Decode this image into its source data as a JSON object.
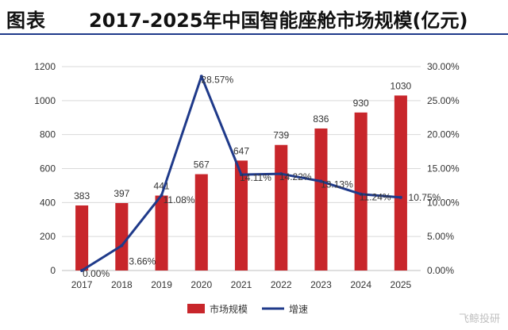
{
  "header": {
    "label": "图表",
    "title": "2017-2025年中国智能座舱市场规模(亿元)"
  },
  "watermark": "飞鲸投研",
  "colors": {
    "bar": "#c8262b",
    "line": "#1f3a8a",
    "grid": "#d9d9d9",
    "axis_text": "#333333",
    "header_rule": "#1f3a8a"
  },
  "chart_data": {
    "type": "bar",
    "categories": [
      "2017",
      "2018",
      "2019",
      "2020",
      "2021",
      "2022",
      "2023",
      "2024",
      "2025"
    ],
    "series": [
      {
        "name": "市场规模",
        "type": "bar",
        "axis": "left",
        "values": [
          383,
          397,
          441,
          567,
          647,
          739,
          836,
          930,
          1030
        ],
        "labels": [
          "383",
          "397",
          "441",
          "567",
          "647",
          "739",
          "836",
          "930",
          "1030"
        ]
      },
      {
        "name": "增速",
        "type": "line",
        "axis": "right",
        "values": [
          0.0,
          3.66,
          11.08,
          28.57,
          14.11,
          14.22,
          13.13,
          11.24,
          10.75
        ],
        "labels": [
          "0.00%",
          "3.66%",
          "11.08%",
          "28.57%",
          "14.11%",
          "14.22%",
          "13.13%",
          "11.24%",
          "10.75%"
        ]
      }
    ],
    "y_left": {
      "min": 0,
      "max": 1200,
      "ticks": [
        0,
        200,
        400,
        600,
        800,
        1000,
        1200
      ]
    },
    "y_right": {
      "min": 0,
      "max": 30,
      "ticks": [
        "0.00%",
        "5.00%",
        "10.00%",
        "15.00%",
        "20.00%",
        "25.00%",
        "30.00%"
      ]
    },
    "grid": true,
    "legend_position": "bottom"
  }
}
